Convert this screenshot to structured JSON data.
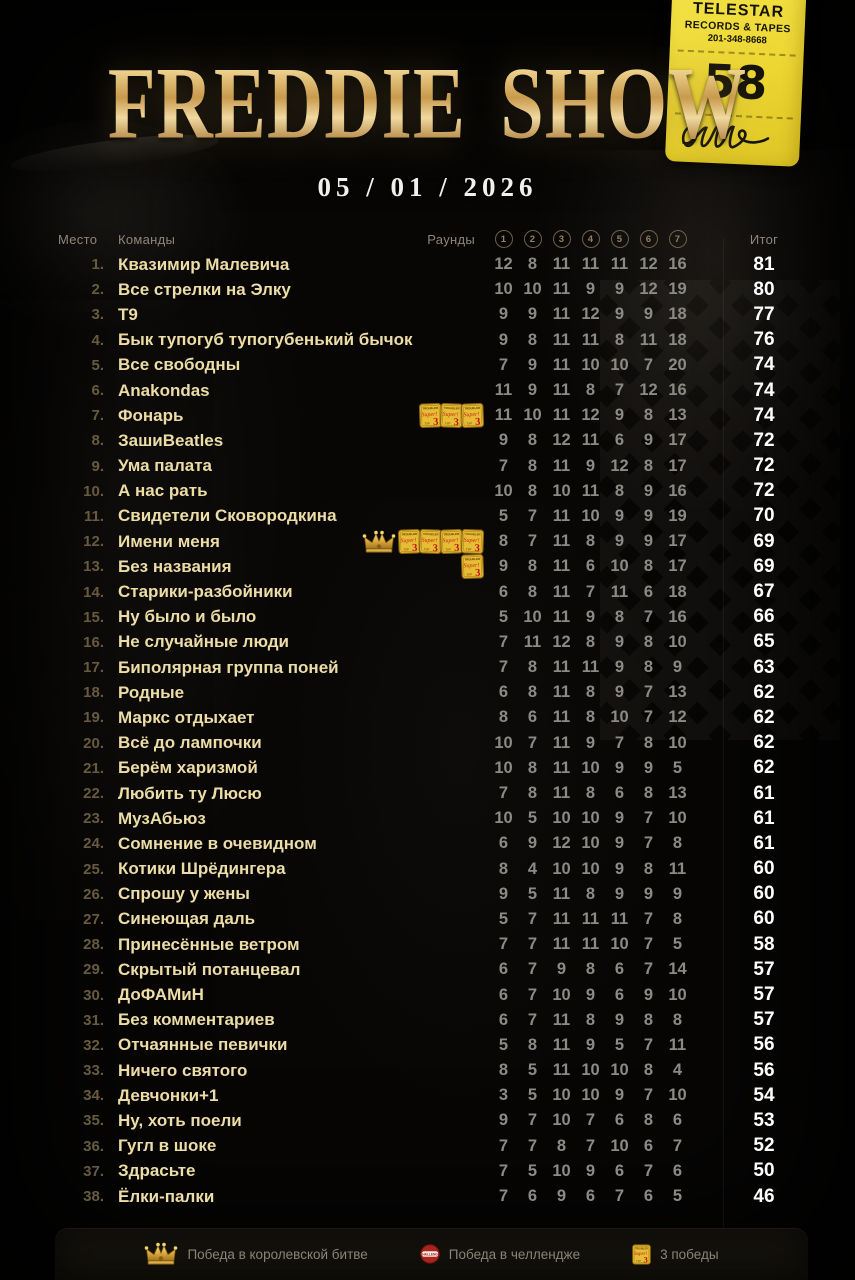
{
  "ticket": {
    "line1": "TELESTAR",
    "line2": "RECORDS & TAPES",
    "line3": "201-348-8668",
    "number": "58"
  },
  "header": {
    "title": "FREDDIE SHOW",
    "date": "05 / 01 / 2026"
  },
  "table": {
    "col_place": "Место",
    "col_teams": "Команды",
    "col_rounds": "Раунды",
    "col_total": "Итог",
    "round_numbers": [
      "1",
      "2",
      "3",
      "4",
      "5",
      "6",
      "7"
    ],
    "rows": [
      {
        "place": "1.",
        "name": "Квазимир Малевича",
        "scores": [
          12,
          8,
          11,
          11,
          11,
          12,
          16
        ],
        "total": 81
      },
      {
        "place": "2.",
        "name": "Все стрелки на Элку",
        "scores": [
          10,
          10,
          11,
          9,
          9,
          12,
          19
        ],
        "total": 80
      },
      {
        "place": "3.",
        "name": "Т9",
        "scores": [
          9,
          9,
          11,
          12,
          9,
          9,
          18
        ],
        "total": 77
      },
      {
        "place": "4.",
        "name": "Бык тупогуб тупогубенький бычок",
        "scores": [
          9,
          8,
          11,
          11,
          8,
          11,
          18
        ],
        "total": 76
      },
      {
        "place": "5.",
        "name": "Все свободны",
        "scores": [
          7,
          9,
          11,
          10,
          10,
          7,
          20
        ],
        "total": 74
      },
      {
        "place": "6.",
        "name": "Anakondas",
        "scores": [
          11,
          9,
          11,
          8,
          7,
          12,
          16
        ],
        "total": 74
      },
      {
        "place": "7.",
        "name": "Фонарь",
        "scores": [
          11,
          10,
          11,
          12,
          9,
          8,
          13
        ],
        "total": 74,
        "cards": 3
      },
      {
        "place": "8.",
        "name": "ЗашиBeatles",
        "scores": [
          9,
          8,
          12,
          11,
          6,
          9,
          17
        ],
        "total": 72
      },
      {
        "place": "9.",
        "name": "Ума палата",
        "scores": [
          7,
          8,
          11,
          9,
          12,
          8,
          17
        ],
        "total": 72
      },
      {
        "place": "10.",
        "name": "А нас рать",
        "scores": [
          10,
          8,
          10,
          11,
          8,
          9,
          16
        ],
        "total": 72
      },
      {
        "place": "11.",
        "name": "Свидетели Сковородкина",
        "scores": [
          5,
          7,
          11,
          10,
          9,
          9,
          19
        ],
        "total": 70
      },
      {
        "place": "12.",
        "name": "Имени меня",
        "scores": [
          8,
          7,
          11,
          8,
          9,
          9,
          17
        ],
        "total": 69,
        "crown": true,
        "cards": 4
      },
      {
        "place": "13.",
        "name": "Без названия",
        "scores": [
          9,
          8,
          11,
          6,
          10,
          8,
          17
        ],
        "total": 69,
        "cards": 1
      },
      {
        "place": "14.",
        "name": "Старики-разбойники",
        "scores": [
          6,
          8,
          11,
          7,
          11,
          6,
          18
        ],
        "total": 67
      },
      {
        "place": "15.",
        "name": "Ну было и было",
        "scores": [
          5,
          10,
          11,
          9,
          8,
          7,
          16
        ],
        "total": 66
      },
      {
        "place": "16.",
        "name": "Не случайные люди",
        "scores": [
          7,
          11,
          12,
          8,
          9,
          8,
          10
        ],
        "total": 65
      },
      {
        "place": "17.",
        "name": "Биполярная группа поней",
        "scores": [
          7,
          8,
          11,
          11,
          9,
          8,
          9
        ],
        "total": 63
      },
      {
        "place": "18.",
        "name": "Родные",
        "scores": [
          6,
          8,
          11,
          8,
          9,
          7,
          13
        ],
        "total": 62
      },
      {
        "place": "19.",
        "name": "Маркс отдыхает",
        "scores": [
          8,
          6,
          11,
          8,
          10,
          7,
          12
        ],
        "total": 62
      },
      {
        "place": "20.",
        "name": "Всё до лампочки",
        "scores": [
          10,
          7,
          11,
          9,
          7,
          8,
          10
        ],
        "total": 62
      },
      {
        "place": "21.",
        "name": "Берём харизмой",
        "scores": [
          10,
          8,
          11,
          10,
          9,
          9,
          5
        ],
        "total": 62
      },
      {
        "place": "22.",
        "name": "Любить ту Люсю",
        "scores": [
          7,
          8,
          11,
          8,
          6,
          8,
          13
        ],
        "total": 61
      },
      {
        "place": "23.",
        "name": "МузАбьюз",
        "scores": [
          10,
          5,
          10,
          10,
          9,
          7,
          10
        ],
        "total": 61
      },
      {
        "place": "24.",
        "name": "Сомнение в очевидном",
        "scores": [
          6,
          9,
          12,
          10,
          9,
          7,
          8
        ],
        "total": 61
      },
      {
        "place": "25.",
        "name": "Котики Шрёдингера",
        "scores": [
          8,
          4,
          10,
          10,
          9,
          8,
          11
        ],
        "total": 60
      },
      {
        "place": "26.",
        "name": "Спрошу у жены",
        "scores": [
          9,
          5,
          11,
          8,
          9,
          9,
          9
        ],
        "total": 60
      },
      {
        "place": "27.",
        "name": "Синеющая даль",
        "scores": [
          5,
          7,
          11,
          11,
          11,
          7,
          8
        ],
        "total": 60
      },
      {
        "place": "28.",
        "name": "Принесённые ветром",
        "scores": [
          7,
          7,
          11,
          11,
          10,
          7,
          5
        ],
        "total": 58
      },
      {
        "place": "29.",
        "name": "Скрытый потанцевал",
        "scores": [
          6,
          7,
          9,
          8,
          6,
          7,
          14
        ],
        "total": 57
      },
      {
        "place": "30.",
        "name": "ДоФАМиН",
        "scores": [
          6,
          7,
          10,
          9,
          6,
          9,
          10
        ],
        "total": 57
      },
      {
        "place": "31.",
        "name": "Без комментариев",
        "scores": [
          6,
          7,
          11,
          8,
          9,
          8,
          8
        ],
        "total": 57
      },
      {
        "place": "32.",
        "name": "Отчаянные певички",
        "scores": [
          5,
          8,
          11,
          9,
          5,
          7,
          11
        ],
        "total": 56
      },
      {
        "place": "33.",
        "name": "Ничего святого",
        "scores": [
          8,
          5,
          11,
          10,
          10,
          8,
          4
        ],
        "total": 56
      },
      {
        "place": "34.",
        "name": "Девчонки+1",
        "scores": [
          3,
          5,
          10,
          10,
          9,
          7,
          10
        ],
        "total": 54
      },
      {
        "place": "35.",
        "name": "Ну, хоть поели",
        "scores": [
          9,
          7,
          10,
          7,
          6,
          8,
          6
        ],
        "total": 53
      },
      {
        "place": "36.",
        "name": "Гугл в шоке",
        "scores": [
          7,
          7,
          8,
          7,
          10,
          6,
          7
        ],
        "total": 52
      },
      {
        "place": "37.",
        "name": "Здрасьте",
        "scores": [
          7,
          5,
          10,
          9,
          6,
          7,
          6
        ],
        "total": 50
      },
      {
        "place": "38.",
        "name": "Ёлки-палки",
        "scores": [
          7,
          6,
          9,
          6,
          7,
          6,
          5
        ],
        "total": 46
      }
    ]
  },
  "legend": {
    "crown_label": "Победа  в королевской битве",
    "challenge_label": "Победа  в челлендже",
    "cards_label": "3 победы"
  },
  "colors": {
    "accent_gold": "#ecdca6",
    "title_gold": "#d8ab5c",
    "ticket_yellow": "#ecd632",
    "score_gray": "#8c8a85",
    "total_white": "#ffffff",
    "card_gold": "#e7bd35",
    "challenge_red": "#a8241e"
  }
}
